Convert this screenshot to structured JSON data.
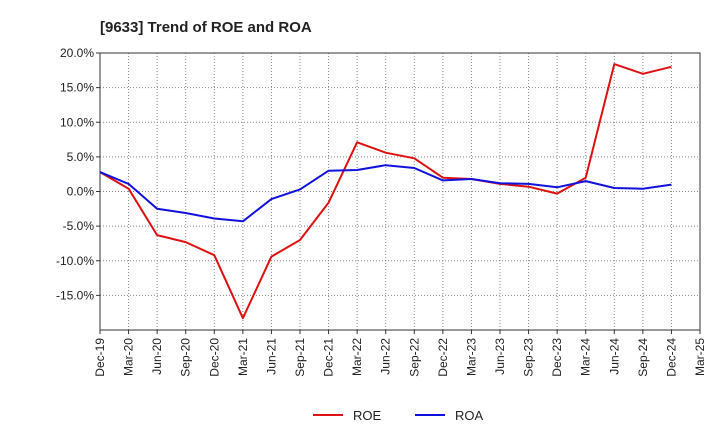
{
  "chart_data": {
    "type": "line",
    "title": "[9633]  Trend of ROE and ROA",
    "xlabel": "",
    "ylabel": "",
    "ylim": [
      -20.0,
      20.0
    ],
    "y_ticks": [
      "20.0%",
      "15.0%",
      "10.0%",
      "5.0%",
      "0.0%",
      "-5.0%",
      "-10.0%",
      "-15.0%"
    ],
    "y_tick_values": [
      20,
      15,
      10,
      5,
      0,
      -5,
      -10,
      -15
    ],
    "x": [
      "Dec-19",
      "Mar-20",
      "Jun-20",
      "Sep-20",
      "Dec-20",
      "Mar-21",
      "Jun-21",
      "Sep-21",
      "Dec-21",
      "Mar-22",
      "Jun-22",
      "Sep-22",
      "Dec-22",
      "Mar-23",
      "Jun-23",
      "Sep-23",
      "Dec-23",
      "Mar-24",
      "Jun-24",
      "Sep-24",
      "Dec-24",
      "Mar-25"
    ],
    "grid": true,
    "legend": "bottom",
    "series": [
      {
        "name": "ROE",
        "color": "#dd1111",
        "values": [
          2.8,
          0.4,
          -6.3,
          -7.3,
          -9.2,
          -18.3,
          -9.4,
          -7.0,
          -1.6,
          7.1,
          5.6,
          4.8,
          2.0,
          1.8,
          1.1,
          0.7,
          -0.3,
          2.0,
          18.4,
          17.0,
          18.0,
          null
        ]
      },
      {
        "name": "ROA",
        "color": "#1111dd",
        "values": [
          2.8,
          1.1,
          -2.5,
          -3.1,
          -3.9,
          -4.3,
          -1.1,
          0.3,
          3.0,
          3.1,
          3.8,
          3.4,
          1.6,
          1.8,
          1.2,
          1.1,
          0.6,
          1.5,
          0.5,
          0.4,
          1.0,
          null
        ]
      }
    ]
  }
}
